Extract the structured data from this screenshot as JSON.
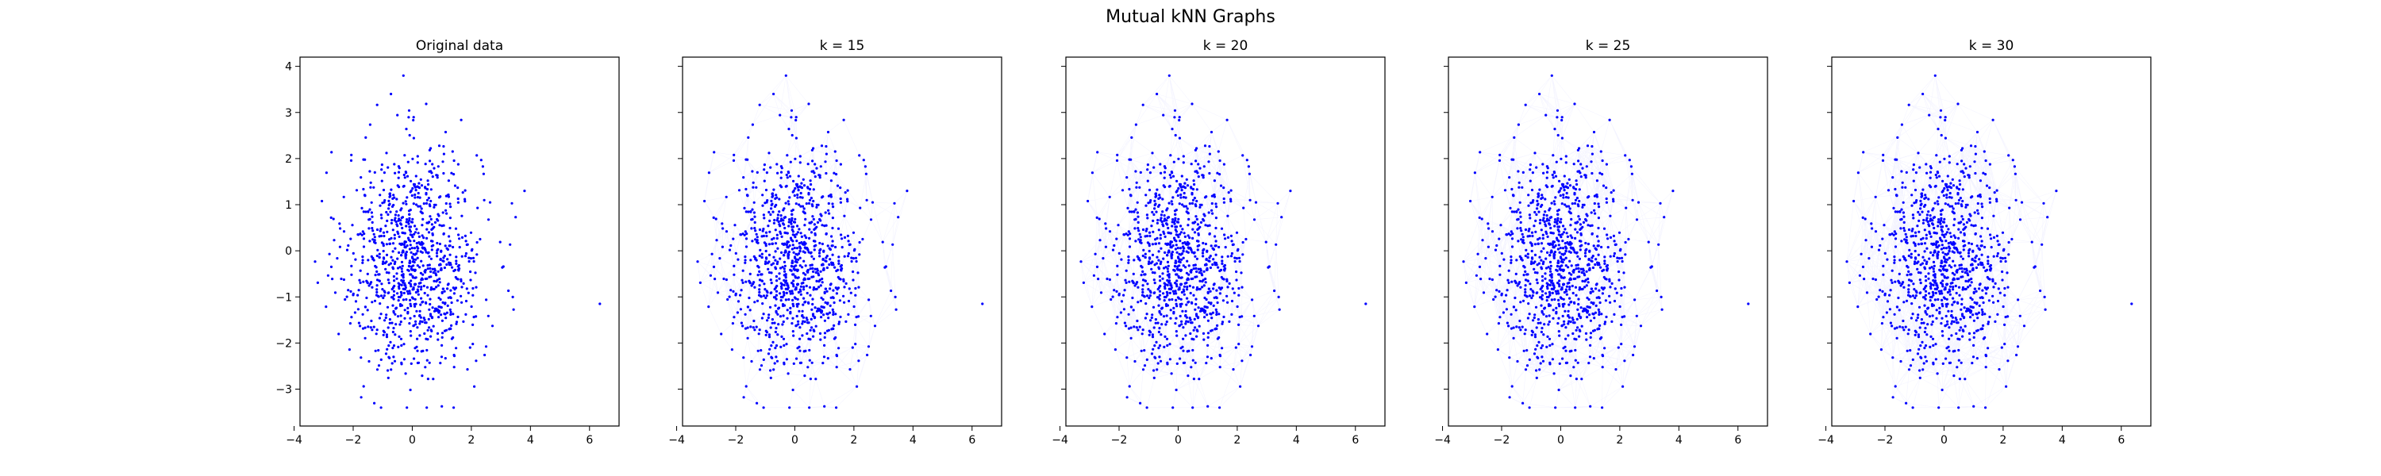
{
  "figure_title": "Mutual kNN Graphs",
  "colors": {
    "points": "#0000ff",
    "edges": "#0000ff",
    "axes": "#000000",
    "background": "#ffffff"
  },
  "chart_data": [
    {
      "type": "scatter",
      "title": "Original data",
      "xlim": [
        -3.8,
        7.0
      ],
      "ylim": [
        -3.8,
        4.2
      ],
      "xticks": [
        -4,
        -2,
        0,
        2,
        4,
        6
      ],
      "xtick_labels": [
        "−4",
        "−2",
        "0",
        "2",
        "4",
        "6"
      ],
      "yticks": [
        -3,
        -2,
        -1,
        0,
        1,
        2,
        3,
        4
      ],
      "ytick_labels": [
        "−3",
        "−2",
        "−1",
        "0",
        "1",
        "2",
        "3",
        "4"
      ],
      "show_yticklabels": true,
      "k": 0,
      "graph": "none",
      "points": {
        "distribution": "approximately standard normal, n≈1000",
        "outliers": [
          [
            6.35,
            -1.15
          ],
          [
            3.8,
            1.3
          ],
          [
            -0.3,
            3.8
          ],
          [
            1.4,
            -3.4
          ]
        ]
      }
    },
    {
      "type": "scatter",
      "title": "k = 15",
      "xlim": [
        -3.8,
        7.0
      ],
      "ylim": [
        -3.8,
        4.2
      ],
      "xticks": [
        -4,
        -2,
        0,
        2,
        4,
        6
      ],
      "xtick_labels": [
        "−4",
        "−2",
        "0",
        "2",
        "4",
        "6"
      ],
      "yticks": [
        -3,
        -2,
        -1,
        0,
        1,
        2,
        3,
        4
      ],
      "ytick_labels": [],
      "show_yticklabels": false,
      "k": 15,
      "graph": "mutual kNN edges"
    },
    {
      "type": "scatter",
      "title": "k = 20",
      "xlim": [
        -3.8,
        7.0
      ],
      "ylim": [
        -3.8,
        4.2
      ],
      "xticks": [
        -4,
        -2,
        0,
        2,
        4,
        6
      ],
      "xtick_labels": [
        "−4",
        "−2",
        "0",
        "2",
        "4",
        "6"
      ],
      "yticks": [
        -3,
        -2,
        -1,
        0,
        1,
        2,
        3,
        4
      ],
      "ytick_labels": [],
      "show_yticklabels": false,
      "k": 20,
      "graph": "mutual kNN edges"
    },
    {
      "type": "scatter",
      "title": "k = 25",
      "xlim": [
        -3.8,
        7.0
      ],
      "ylim": [
        -3.8,
        4.2
      ],
      "xticks": [
        -4,
        -2,
        0,
        2,
        4,
        6
      ],
      "xtick_labels": [
        "−4",
        "−2",
        "0",
        "2",
        "4",
        "6"
      ],
      "yticks": [
        -3,
        -2,
        -1,
        0,
        1,
        2,
        3,
        4
      ],
      "ytick_labels": [],
      "show_yticklabels": false,
      "k": 25,
      "graph": "mutual kNN edges"
    },
    {
      "type": "scatter",
      "title": "k = 30",
      "xlim": [
        -3.8,
        7.0
      ],
      "ylim": [
        -3.8,
        4.2
      ],
      "xticks": [
        -4,
        -2,
        0,
        2,
        4,
        6
      ],
      "xtick_labels": [
        "−4",
        "−2",
        "0",
        "2",
        "4",
        "6"
      ],
      "yticks": [
        -3,
        -2,
        -1,
        0,
        1,
        2,
        3,
        4
      ],
      "ytick_labels": [],
      "show_yticklabels": false,
      "k": 30,
      "graph": "mutual kNN edges"
    }
  ]
}
